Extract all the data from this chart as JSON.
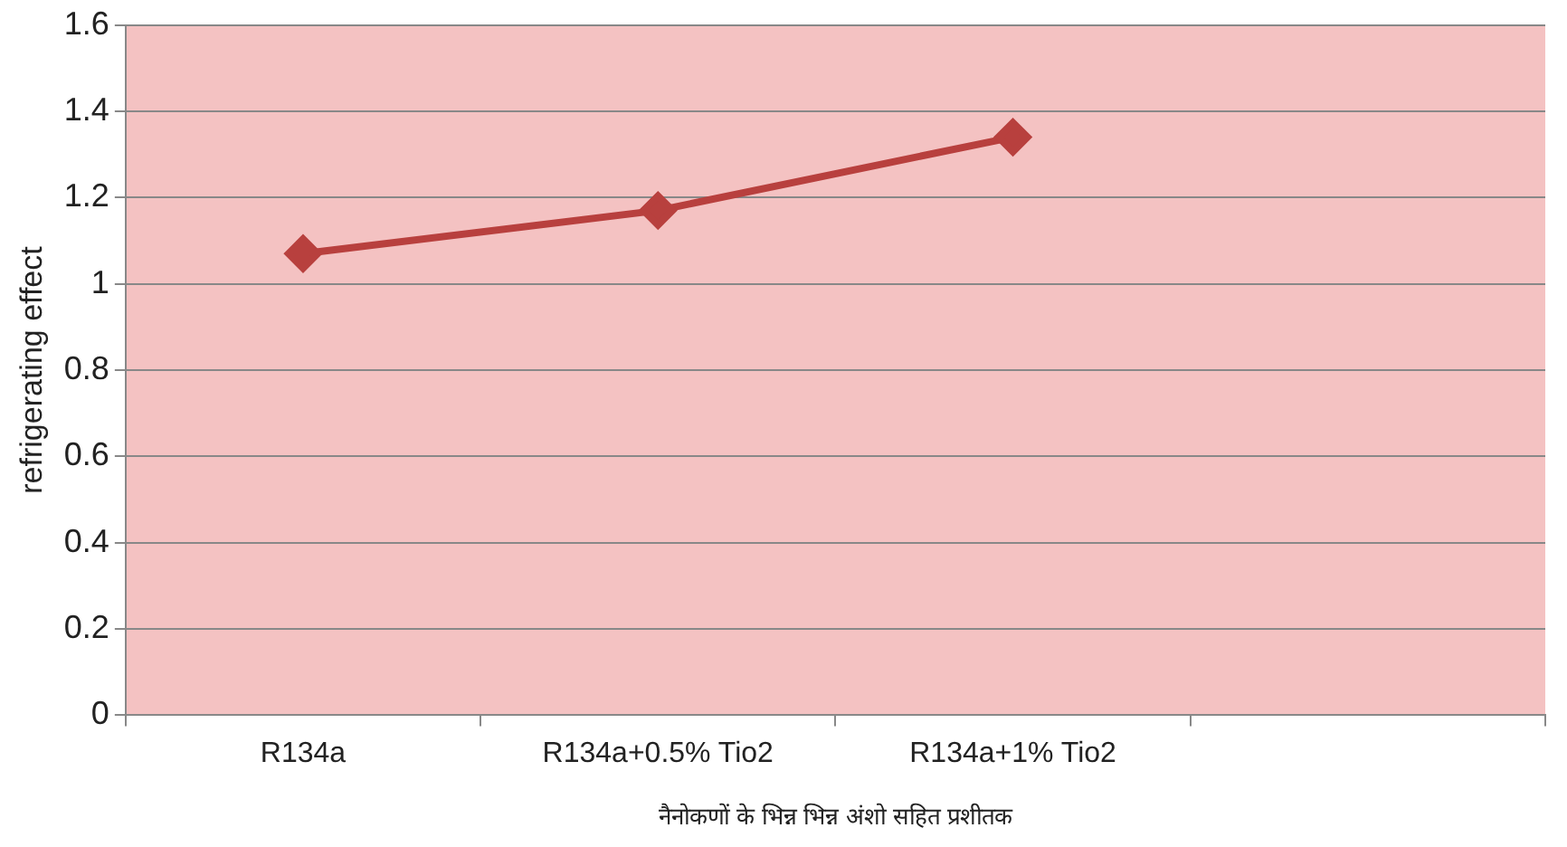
{
  "chart_data": {
    "type": "line",
    "xlabel": "नैनोकणों के भिन्न भिन्न अंशो सहित प्रशीतक",
    "ylabel": "refrigerating effect",
    "categories": [
      "R134a",
      "R134a+0.5% Tio2",
      "R134a+1% Tio2",
      null
    ],
    "series": [
      {
        "color": "#b8403e",
        "values": [
          1.07,
          1.17,
          1.34,
          null
        ]
      }
    ],
    "ylim": [
      0,
      1.6
    ],
    "yticks": [
      0,
      0.2,
      0.4,
      0.6,
      0.8,
      1,
      1.2,
      1.4,
      1.6
    ],
    "grid": "y",
    "legend": false,
    "marker": "diamond",
    "line_style": "solid"
  }
}
